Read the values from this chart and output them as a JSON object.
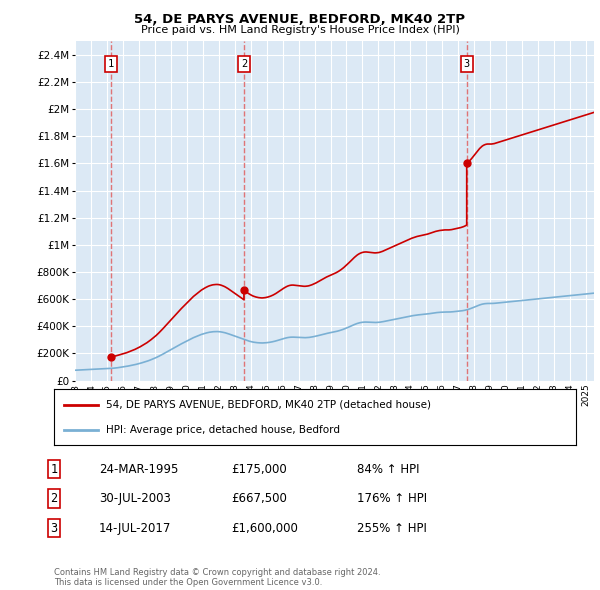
{
  "title": "54, DE PARYS AVENUE, BEDFORD, MK40 2TP",
  "subtitle": "Price paid vs. HM Land Registry's House Price Index (HPI)",
  "ylim": [
    0,
    2500000
  ],
  "yticks": [
    0,
    200000,
    400000,
    600000,
    800000,
    1000000,
    1200000,
    1400000,
    1600000,
    1800000,
    2000000,
    2200000,
    2400000
  ],
  "ytick_labels": [
    "£0",
    "£200K",
    "£400K",
    "£600K",
    "£800K",
    "£1M",
    "£1.2M",
    "£1.4M",
    "£1.6M",
    "£1.8M",
    "£2M",
    "£2.2M",
    "£2.4M"
  ],
  "xlim_start": 1993.0,
  "xlim_end": 2025.5,
  "sale_dates": [
    1995.23,
    2003.58,
    2017.53
  ],
  "sale_prices": [
    175000,
    667500,
    1600000
  ],
  "sale_labels": [
    "1",
    "2",
    "3"
  ],
  "hpi_color": "#7ab0d4",
  "price_color": "#cc0000",
  "dashed_color": "#e06060",
  "plot_bg_color": "#dce9f5",
  "legend_text1": "54, DE PARYS AVENUE, BEDFORD, MK40 2TP (detached house)",
  "legend_text2": "HPI: Average price, detached house, Bedford",
  "table_data": [
    [
      "1",
      "24-MAR-1995",
      "£175,000",
      "84% ↑ HPI"
    ],
    [
      "2",
      "30-JUL-2003",
      "£667,500",
      "176% ↑ HPI"
    ],
    [
      "3",
      "14-JUL-2017",
      "£1,600,000",
      "255% ↑ HPI"
    ]
  ],
  "footer": "Contains HM Land Registry data © Crown copyright and database right 2024.\nThis data is licensed under the Open Government Licence v3.0.",
  "hpi_monthly": {
    "start_year": 1993,
    "start_month": 1,
    "values": [
      76000,
      76500,
      77000,
      77500,
      78000,
      78500,
      79000,
      79200,
      79500,
      80000,
      80500,
      81000,
      81500,
      82000,
      82500,
      83000,
      83500,
      84000,
      84500,
      85000,
      85500,
      86000,
      86500,
      87000,
      87500,
      88000,
      88700,
      89400,
      90100,
      91000,
      92000,
      93200,
      94500,
      96000,
      97500,
      99000,
      100500,
      102000,
      103500,
      105000,
      107000,
      109000,
      111000,
      113000,
      115000,
      117000,
      119500,
      122000,
      124500,
      127000,
      130000,
      133000,
      136000,
      139000,
      142000,
      145500,
      149000,
      153000,
      157000,
      161000,
      165000,
      169500,
      174000,
      179000,
      184000,
      189000,
      194500,
      200000,
      205500,
      211000,
      216500,
      222000,
      227500,
      233000,
      238500,
      244000,
      249500,
      255000,
      260500,
      266000,
      271000,
      276000,
      281000,
      286000,
      291000,
      296000,
      301000,
      306000,
      311000,
      316000,
      320000,
      324000,
      328000,
      332000,
      336000,
      340000,
      343000,
      346000,
      349000,
      351500,
      354000,
      356000,
      357500,
      359000,
      360000,
      360500,
      361000,
      361000,
      360500,
      359500,
      358000,
      356000,
      354000,
      351500,
      348500,
      345500,
      342000,
      338500,
      335000,
      331500,
      328000,
      324500,
      321000,
      317500,
      314000,
      310500,
      307000,
      303500,
      300000,
      296500,
      293000,
      290000,
      287500,
      285000,
      283000,
      281500,
      280000,
      279000,
      278000,
      277500,
      277000,
      277000,
      277500,
      278000,
      279000,
      280000,
      281500,
      283000,
      285000,
      287000,
      289500,
      292000,
      295000,
      298000,
      301000,
      304000,
      307000,
      310000,
      312500,
      315000,
      317000,
      318500,
      319500,
      320000,
      320000,
      319500,
      319000,
      318500,
      318000,
      317500,
      317000,
      316500,
      316000,
      316000,
      316500,
      317000,
      318000,
      319500,
      321000,
      323000,
      325000,
      327000,
      329500,
      332000,
      334500,
      337000,
      339500,
      342000,
      344500,
      347000,
      349000,
      351000,
      353000,
      355000,
      357000,
      359000,
      361000,
      363500,
      366000,
      369000,
      372000,
      375500,
      379000,
      383000,
      387000,
      391000,
      395500,
      400000,
      404500,
      409000,
      413000,
      417000,
      420500,
      423500,
      426000,
      428000,
      429500,
      430500,
      431000,
      431000,
      430500,
      430000,
      429500,
      429000,
      428500,
      428000,
      428000,
      428500,
      429000,
      430000,
      431500,
      433000,
      435000,
      437000,
      439000,
      441000,
      443000,
      445000,
      447000,
      449000,
      451000,
      453000,
      455000,
      457000,
      459000,
      461000,
      463000,
      465000,
      467000,
      469000,
      471000,
      473000,
      475000,
      477000,
      478500,
      480000,
      481500,
      483000,
      484000,
      485000,
      486000,
      487000,
      488000,
      489000,
      490000,
      491000,
      492500,
      494000,
      495500,
      497000,
      498500,
      500000,
      501000,
      502000,
      503000,
      503500,
      504000,
      504500,
      505000,
      505000,
      505000,
      505000,
      505500,
      506000,
      507000,
      508000,
      509000,
      510000,
      511000,
      512000,
      513000,
      514500,
      516000,
      518000,
      520500,
      523000,
      526000,
      529500,
      533000,
      537000,
      541000,
      545000,
      549000,
      553000,
      557000,
      560000,
      563000,
      565000,
      566500,
      567500,
      568000,
      568000,
      568000,
      568000,
      568500,
      569000,
      570000,
      571000,
      572000,
      573000,
      574000,
      575000,
      576000,
      577000,
      578000,
      579000,
      580000,
      581000,
      582000,
      583000,
      584000,
      585000,
      586000,
      587000,
      588000,
      589000,
      590000,
      591000,
      592000,
      593000,
      594000,
      595000,
      596000,
      597000,
      598000,
      599000,
      600000,
      601000,
      602000,
      603000,
      604000,
      605000,
      606000,
      607000,
      608000,
      609000,
      610000,
      611000,
      612000,
      613000,
      614000,
      615000,
      616000,
      617000,
      618000,
      619000,
      620000,
      621000,
      622000,
      623000,
      624000,
      625000,
      626000,
      627000,
      628000,
      629000,
      630000,
      631000,
      632000,
      633000,
      634000,
      635000,
      636000,
      637000,
      638000,
      639000,
      640000,
      641000,
      642000,
      643000,
      644000,
      645000,
      646000,
      647000,
      648000,
      649000,
      650000,
      651000,
      652000,
      653000,
      654000,
      655000,
      656000,
      657000,
      658000,
      659000,
      660000,
      661000,
      662000,
      663000,
      664000,
      665000,
      666000,
      667000,
      668000,
      669000,
      670000,
      671000,
      672000,
      673000,
      674000,
      675000,
      676000,
      677000,
      678000,
      679000,
      680000,
      681000,
      682000,
      683000,
      684000,
      685000
    ]
  }
}
